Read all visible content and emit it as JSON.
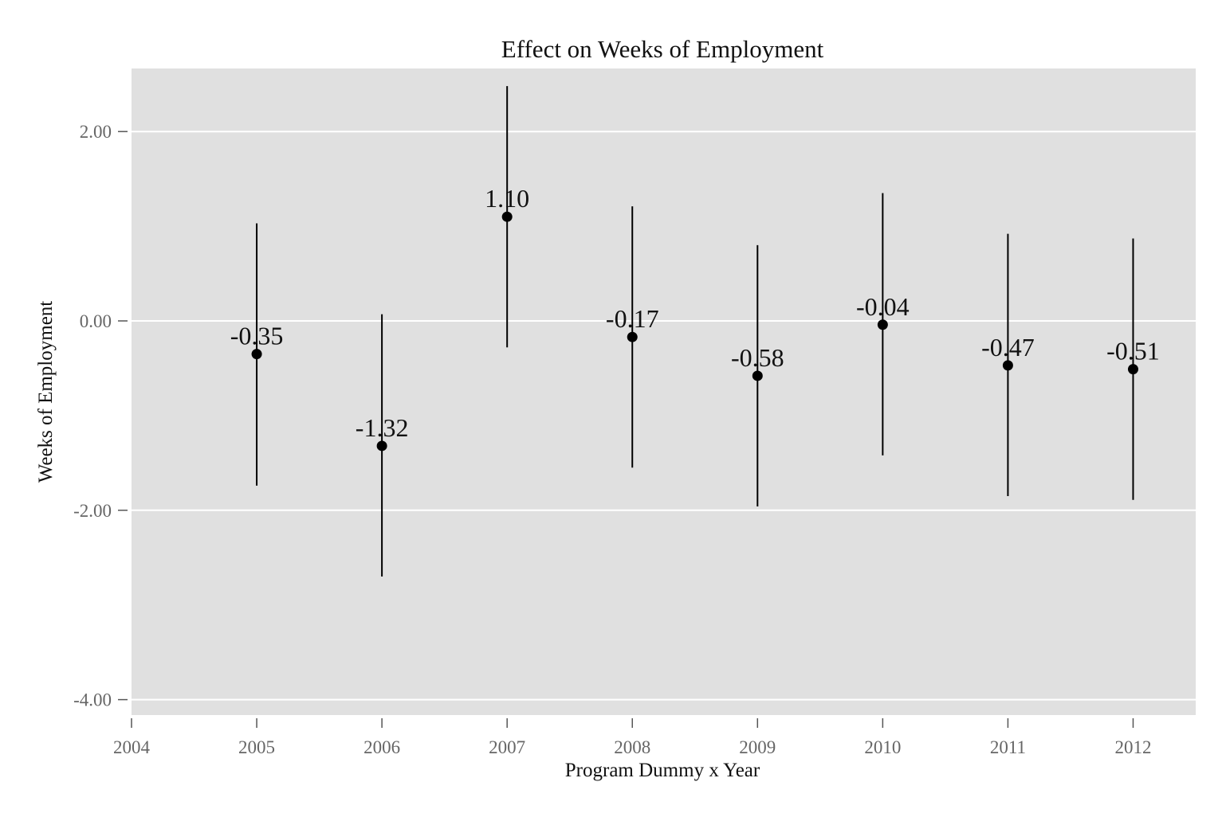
{
  "chart_data": {
    "type": "scatter",
    "title": "Effect on Weeks of Employment",
    "xlabel": "Program Dummy x Year",
    "ylabel": "Weeks of Employment",
    "x_ticks": [
      "2004",
      "2005",
      "2006",
      "2007",
      "2008",
      "2009",
      "2010",
      "2011",
      "2012"
    ],
    "y_ticks": [
      "-4.00",
      "-2.00",
      "0.00",
      "2.00"
    ],
    "xlim": [
      2004,
      2012.5
    ],
    "ylim": [
      -4.15,
      2.65
    ],
    "grid": true,
    "error_bars": "confidence interval",
    "colors": {
      "panel_bg": "#e0e0e0",
      "grid": "#ffffff",
      "marker": "#000000",
      "tick_text": "#666666",
      "text": "#111111"
    },
    "points": [
      {
        "x": 2005,
        "y": -0.35,
        "label": "-0.35",
        "ci_low": -1.74,
        "ci_high": 1.03
      },
      {
        "x": 2006,
        "y": -1.32,
        "label": "-1.32",
        "ci_low": -2.7,
        "ci_high": 0.07
      },
      {
        "x": 2007,
        "y": 1.1,
        "label": "1.10",
        "ci_low": -0.28,
        "ci_high": 2.48
      },
      {
        "x": 2008,
        "y": -0.17,
        "label": "-0.17",
        "ci_low": -1.55,
        "ci_high": 1.21
      },
      {
        "x": 2009,
        "y": -0.58,
        "label": "-0.58",
        "ci_low": -1.96,
        "ci_high": 0.8
      },
      {
        "x": 2010,
        "y": -0.04,
        "label": "-0.04",
        "ci_low": -1.42,
        "ci_high": 1.35
      },
      {
        "x": 2011,
        "y": -0.47,
        "label": "-0.47",
        "ci_low": -1.85,
        "ci_high": 0.92
      },
      {
        "x": 2012,
        "y": -0.51,
        "label": "-0.51",
        "ci_low": -1.89,
        "ci_high": 0.87
      }
    ]
  }
}
